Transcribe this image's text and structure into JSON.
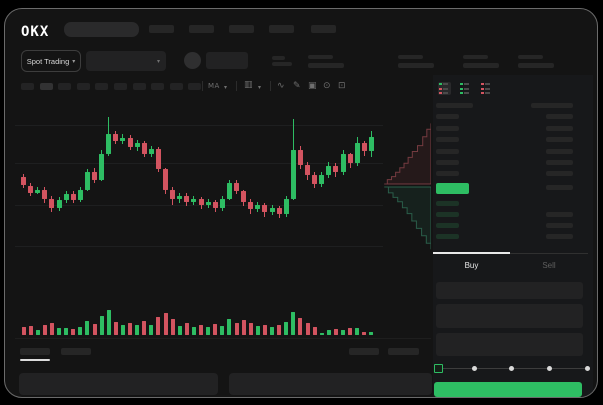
{
  "app": {
    "logo_text": "OKX"
  },
  "colors": {
    "window_bg": "#141414",
    "accent_green": "#2ebd63",
    "accent_red": "#d35460",
    "bid_row_tint": "#1c3326",
    "placeholder": "#262626",
    "text_bright": "#e8e8e8",
    "text_dim": "#6f6f6f"
  },
  "header": {
    "market_selector_label": "Spot Trading",
    "chevron": "▾",
    "nav_placeholder_count": 5
  },
  "toolbar": {
    "timeframe_count": 10,
    "active_timeframe_index": 1,
    "ma_label": "MA",
    "icon_names": [
      "indicator-dropdown",
      "candle-style-dropdown",
      "line-tool",
      "draw-tool",
      "camera",
      "settings",
      "fullscreen"
    ]
  },
  "order_book": {
    "view_toggles": [
      "combined-book",
      "bids-only",
      "asks-only"
    ],
    "active_toggle_index": 0,
    "ask_row_count": 6,
    "bid_row_count": 4,
    "last_price_highlight_color": "#2ebd63"
  },
  "trade_panel": {
    "tabs": [
      {
        "label": "Buy",
        "active": true
      },
      {
        "label": "Sell",
        "active": false
      }
    ],
    "field_count": 3,
    "slider_stop_count": 5,
    "slider_position_index": 0,
    "submit_button_color": "#2ebd63"
  },
  "chart_data": {
    "type": "candlestick",
    "title": "",
    "xlabel": "",
    "ylabel": "",
    "axis_labels_visible": false,
    "price_scale_note": "normalized 0-100, no numeric axis visible in screenshot",
    "gridline_prices": [
      92,
      66,
      38,
      10
    ],
    "candles_ochl": [
      [
        57,
        51,
        59,
        49
      ],
      [
        51,
        46,
        53,
        44
      ],
      [
        46,
        48,
        50,
        45
      ],
      [
        48,
        42,
        50,
        39
      ],
      [
        42,
        36,
        44,
        33
      ],
      [
        36,
        41,
        43,
        34
      ],
      [
        41,
        45,
        47,
        39
      ],
      [
        45,
        41,
        47,
        39
      ],
      [
        41,
        48,
        50,
        40
      ],
      [
        48,
        60,
        62,
        47
      ],
      [
        60,
        55,
        63,
        53
      ],
      [
        55,
        72,
        75,
        54
      ],
      [
        72,
        86,
        97,
        71
      ],
      [
        86,
        81,
        88,
        79
      ],
      [
        81,
        83,
        86,
        79
      ],
      [
        83,
        77,
        85,
        75
      ],
      [
        77,
        80,
        82,
        74
      ],
      [
        80,
        72,
        81,
        70
      ],
      [
        72,
        76,
        78,
        70
      ],
      [
        76,
        62,
        77,
        60
      ],
      [
        62,
        48,
        63,
        45
      ],
      [
        48,
        42,
        50,
        38
      ],
      [
        42,
        44,
        46,
        39
      ],
      [
        44,
        40,
        46,
        37
      ],
      [
        40,
        42,
        44,
        38
      ],
      [
        42,
        38,
        43,
        35
      ],
      [
        38,
        40,
        42,
        36
      ],
      [
        40,
        36,
        41,
        33
      ],
      [
        36,
        42,
        44,
        34
      ],
      [
        42,
        53,
        55,
        41
      ],
      [
        53,
        47,
        55,
        45
      ],
      [
        47,
        40,
        48,
        37
      ],
      [
        40,
        35,
        42,
        32
      ],
      [
        35,
        38,
        40,
        33
      ],
      [
        38,
        33,
        39,
        30
      ],
      [
        33,
        36,
        38,
        31
      ],
      [
        36,
        32,
        37,
        29
      ],
      [
        32,
        42,
        44,
        30
      ],
      [
        42,
        75,
        96,
        41
      ],
      [
        75,
        65,
        78,
        62
      ],
      [
        65,
        58,
        67,
        55
      ],
      [
        58,
        52,
        60,
        49
      ],
      [
        52,
        58,
        60,
        50
      ],
      [
        58,
        64,
        67,
        56
      ],
      [
        64,
        60,
        66,
        57
      ],
      [
        60,
        72,
        75,
        58
      ],
      [
        72,
        66,
        73,
        63
      ],
      [
        66,
        80,
        84,
        64
      ],
      [
        80,
        74,
        81,
        71
      ],
      [
        74,
        84,
        88,
        70
      ]
    ],
    "volume": [
      30,
      35,
      20,
      40,
      45,
      28,
      26,
      24,
      30,
      55,
      42,
      75,
      95,
      52,
      40,
      46,
      38,
      55,
      40,
      70,
      85,
      60,
      36,
      46,
      32,
      40,
      30,
      44,
      36,
      62,
      46,
      56,
      48,
      34,
      40,
      32,
      38,
      52,
      90,
      64,
      48,
      30,
      8,
      20,
      22,
      18,
      26,
      28,
      12,
      10
    ],
    "depth": {
      "asks": [
        [
          0.1,
          52
        ],
        [
          0.16,
          55
        ],
        [
          0.24,
          57
        ],
        [
          0.32,
          60
        ],
        [
          0.4,
          63
        ],
        [
          0.48,
          66
        ],
        [
          0.56,
          70
        ],
        [
          0.64,
          74
        ],
        [
          0.74,
          78
        ],
        [
          0.84,
          84
        ],
        [
          0.92,
          89
        ],
        [
          1.0,
          93
        ]
      ],
      "bids": [
        [
          0.1,
          50
        ],
        [
          0.18,
          46
        ],
        [
          0.27,
          43
        ],
        [
          0.36,
          40
        ],
        [
          0.45,
          36
        ],
        [
          0.54,
          32
        ],
        [
          0.63,
          27
        ],
        [
          0.72,
          22
        ],
        [
          0.82,
          17
        ],
        [
          0.91,
          12
        ],
        [
          1.0,
          8
        ]
      ]
    }
  }
}
